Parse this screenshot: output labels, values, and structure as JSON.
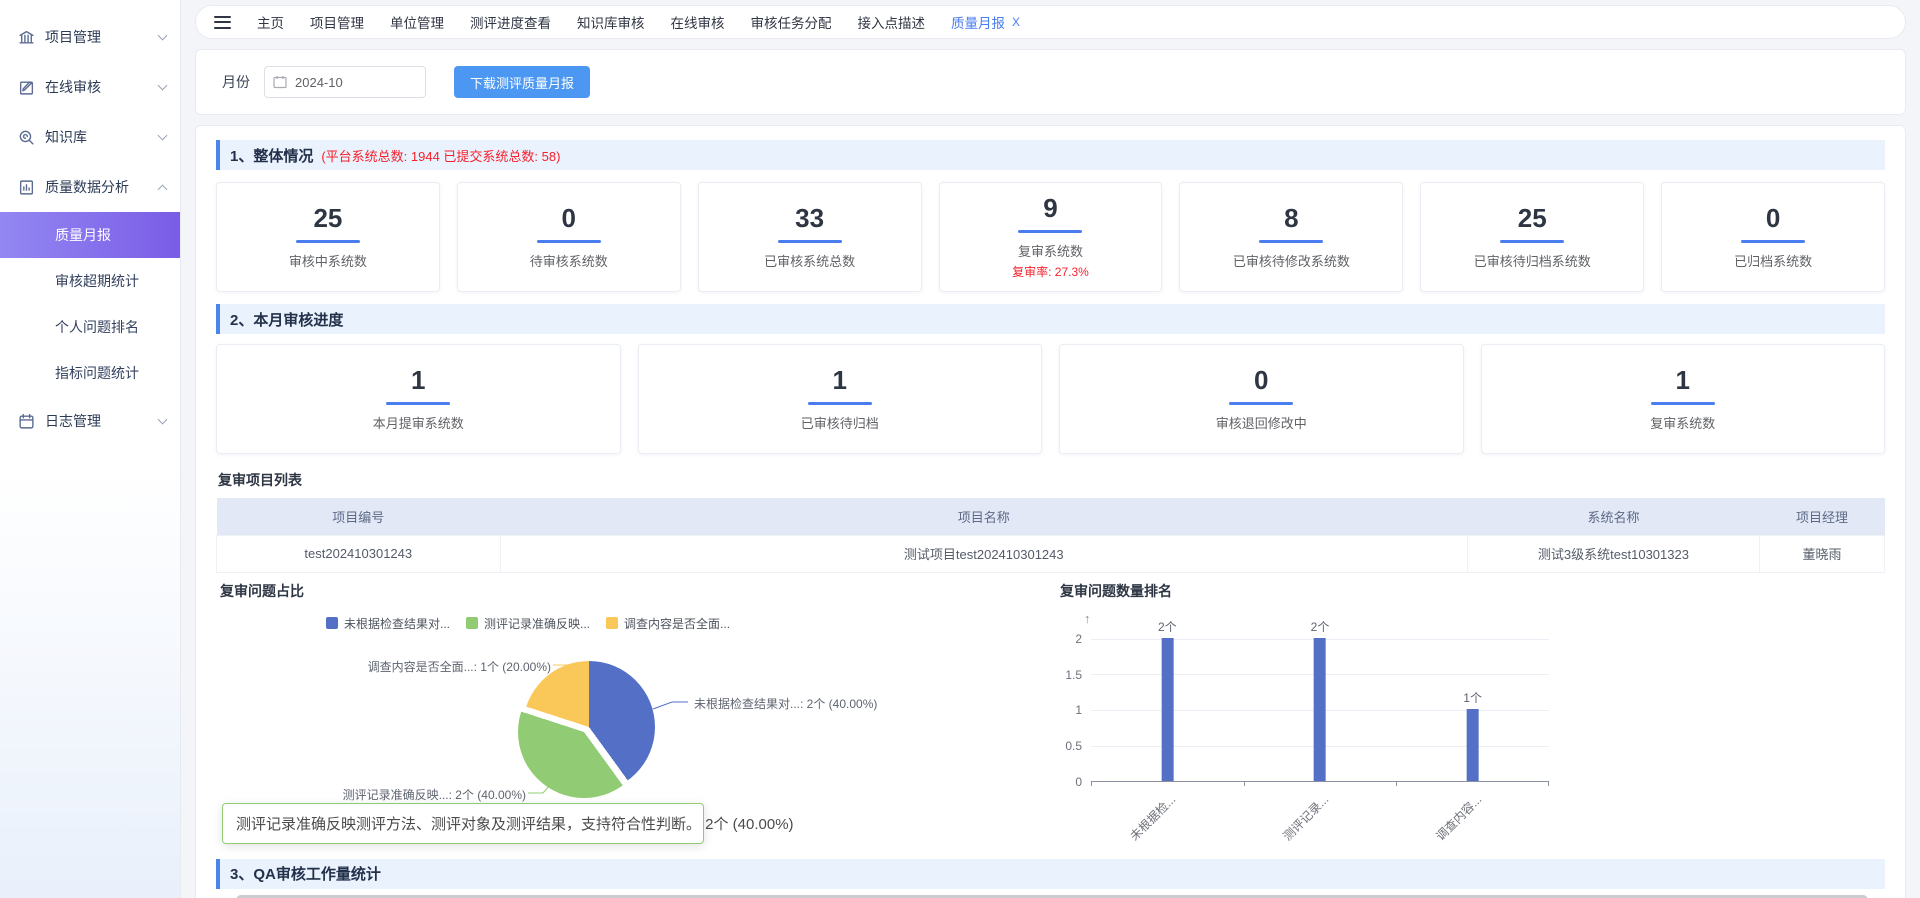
{
  "sidebar": {
    "items": [
      {
        "label": "项目管理",
        "icon": "bank-icon"
      },
      {
        "label": "在线审核",
        "icon": "edit-icon"
      },
      {
        "label": "知识库",
        "icon": "knowledge-search-icon"
      },
      {
        "label": "质量数据分析",
        "icon": "data-analysis-icon"
      },
      {
        "label": "日志管理",
        "icon": "log-calendar-icon"
      }
    ],
    "submenu": [
      "质量月报",
      "审核超期统计",
      "个人问题排名",
      "指标问题统计"
    ],
    "active_item": "质量月报"
  },
  "tabbar": {
    "tabs": [
      "主页",
      "项目管理",
      "单位管理",
      "测评进度查看",
      "知识库审核",
      "在线审核",
      "审核任务分配",
      "接入点描述"
    ],
    "active_tab": {
      "label": "质量月报",
      "close": "X"
    }
  },
  "filter": {
    "month_label": "月份",
    "month_value": "2024-10",
    "download_button": "下载测评质量月报"
  },
  "sections": {
    "s1": {
      "title": "1、整体情况",
      "note": "(平台系统总数: 1944   已提交系统总数: 58)"
    },
    "s2": {
      "title": "2、本月审核进度"
    },
    "s3": {
      "title": "3、QA审核工作量统计"
    }
  },
  "overview_cards": [
    {
      "value": "25",
      "label": "审核中系统数"
    },
    {
      "value": "0",
      "label": "待审核系统数"
    },
    {
      "value": "33",
      "label": "已审核系统总数"
    },
    {
      "value": "9",
      "label": "复审系统数",
      "extra": "复审率: 27.3%"
    },
    {
      "value": "8",
      "label": "已审核待修改系统数"
    },
    {
      "value": "25",
      "label": "已审核待归档系统数"
    },
    {
      "value": "0",
      "label": "已归档系统数"
    }
  ],
  "month_cards": [
    {
      "value": "1",
      "label": "本月提审系统数"
    },
    {
      "value": "1",
      "label": "已审核待归档"
    },
    {
      "value": "0",
      "label": "审核退回修改中"
    },
    {
      "value": "1",
      "label": "复审系统数"
    }
  ],
  "review_table": {
    "title": "复审项目列表",
    "headers": [
      "项目编号",
      "项目名称",
      "系统名称",
      "项目经理"
    ],
    "rows": [
      [
        "test202410301243",
        "测试项目test202410301243",
        "测试3级系统test10301323",
        "董晓雨"
      ]
    ]
  },
  "chart_data": [
    {
      "type": "pie",
      "title": "复审问题占比",
      "legend": [
        "未根据检查结果对...",
        "测评记录准确反映...",
        "调查内容是否全面..."
      ],
      "legend_position": "top",
      "slices": [
        {
          "name": "未根据检查结果对...",
          "count": 2,
          "percent": 40.0,
          "color": "#5470c6",
          "callout": "未根据检查结果对...: 2个  (40.00%)",
          "selected": false
        },
        {
          "name": "测评记录准确反映...",
          "count": 2,
          "percent": 40.0,
          "color": "#91cc75",
          "callout": "测评记录准确反映...: 2个  (40.00%)",
          "selected": true
        },
        {
          "name": "调查内容是否全面...",
          "count": 1,
          "percent": 20.0,
          "color": "#fac858",
          "callout": "调查内容是否全面...: 1个  (20.00%)",
          "selected": false
        }
      ],
      "tooltip": "测评记录准确反映测评方法、测评对象及测评结果，支持符合性判断。 2个 (40.00%)"
    },
    {
      "type": "bar",
      "title": "复审问题数量排名",
      "categories": [
        "未根据检...",
        "测评记录...",
        "调查内容..."
      ],
      "values": [
        2,
        2,
        1
      ],
      "bar_labels": [
        "2个",
        "2个",
        "1个"
      ],
      "ylim": [
        0,
        2
      ],
      "ytick_labels": [
        "2",
        "1.5",
        "1",
        "0.5",
        "0"
      ],
      "bar_color": "#5470c6",
      "grid": true,
      "xlabel_rotation": -45
    }
  ],
  "colors": {
    "accent_blue": "#4a7df0",
    "button_blue": "#4c97f2",
    "alert_red": "#f5222d",
    "section_bg": "#e9f2fd",
    "section_border": "#4a86e8",
    "sidebar_active_gradient": [
      "#9388f2",
      "#7a5ce6"
    ],
    "pie_blue": "#5470c6",
    "pie_green": "#91cc75",
    "pie_yellow": "#fac858",
    "tooltip_border": "#91cc75",
    "table_header_bg": "#e2e8f5"
  }
}
